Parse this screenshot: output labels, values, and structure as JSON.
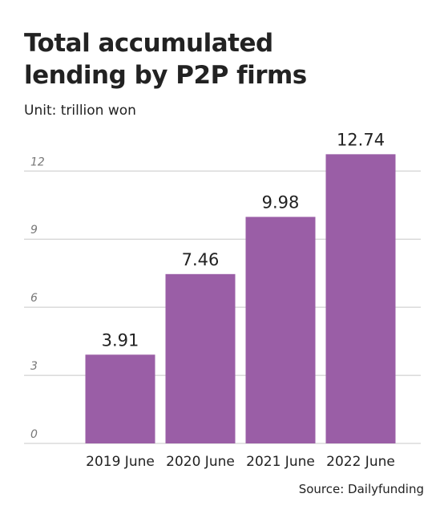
{
  "chart_data": {
    "type": "bar",
    "title": "Total accumulated lending by P2P firms",
    "subtitle": "Unit: trillion won",
    "source": "Source: Dailyfunding",
    "categories": [
      "2019 June",
      "2020 June",
      "2021 June",
      "2022 June"
    ],
    "values": [
      3.91,
      7.46,
      9.98,
      12.74
    ],
    "color": "#9a5ea6",
    "ylim": [
      0,
      13
    ],
    "yticks": [
      0,
      3,
      6,
      9,
      12
    ],
    "grid": true
  }
}
